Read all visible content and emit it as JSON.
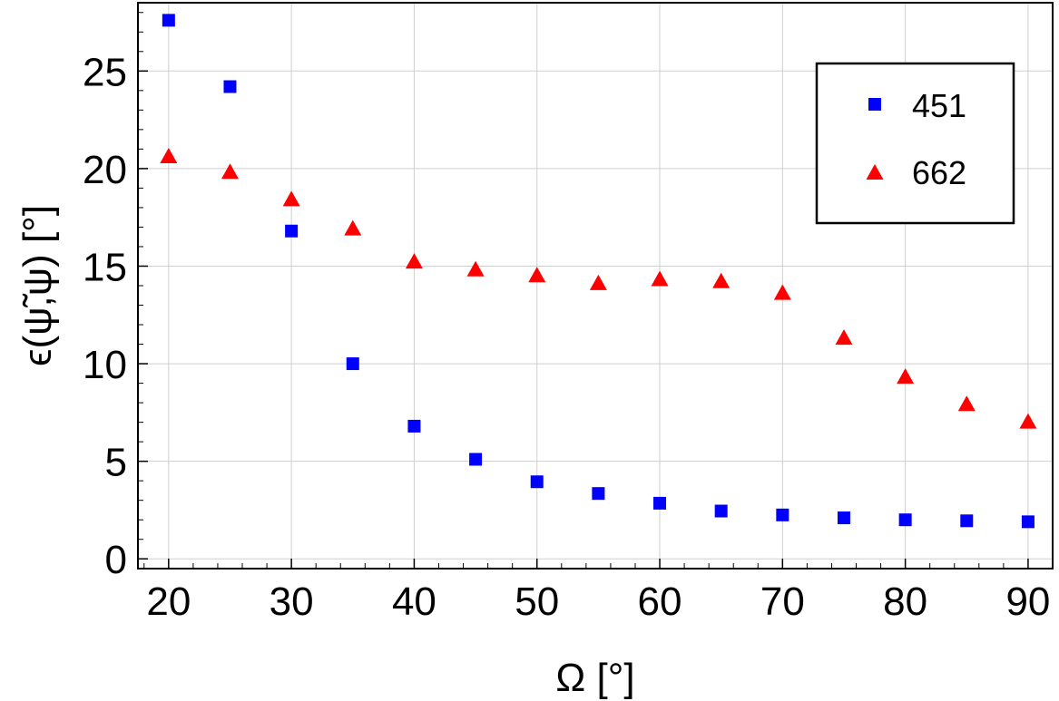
{
  "chart_data": {
    "type": "scatter",
    "xlabel": "Ω [°]",
    "ylabel": "ϵ(ψ̃,ψ) [°]",
    "xlim": [
      17.5,
      92.0
    ],
    "ylim": [
      -0.5,
      28.5
    ],
    "xticks": [
      20,
      30,
      40,
      50,
      60,
      70,
      80,
      90
    ],
    "yticks": [
      0,
      5,
      10,
      15,
      20,
      25
    ],
    "grid": true,
    "legend_position": "top-right",
    "series": [
      {
        "name": "451",
        "marker": "square",
        "color": "#0000ff",
        "x": [
          20,
          25,
          30,
          35,
          40,
          45,
          50,
          55,
          60,
          65,
          70,
          75,
          80,
          85,
          90
        ],
        "y": [
          27.6,
          24.2,
          16.8,
          10.0,
          6.8,
          5.1,
          3.95,
          3.35,
          2.85,
          2.45,
          2.25,
          2.1,
          2.0,
          1.95,
          1.9
        ]
      },
      {
        "name": "662",
        "marker": "triangle",
        "color": "#ff0000",
        "x": [
          20,
          25,
          30,
          35,
          40,
          45,
          50,
          55,
          60,
          65,
          70,
          75,
          80,
          85,
          90
        ],
        "y": [
          20.6,
          19.8,
          18.4,
          16.9,
          15.2,
          14.8,
          14.5,
          14.1,
          14.3,
          14.2,
          13.6,
          11.3,
          9.3,
          7.9,
          7.0
        ]
      }
    ]
  }
}
